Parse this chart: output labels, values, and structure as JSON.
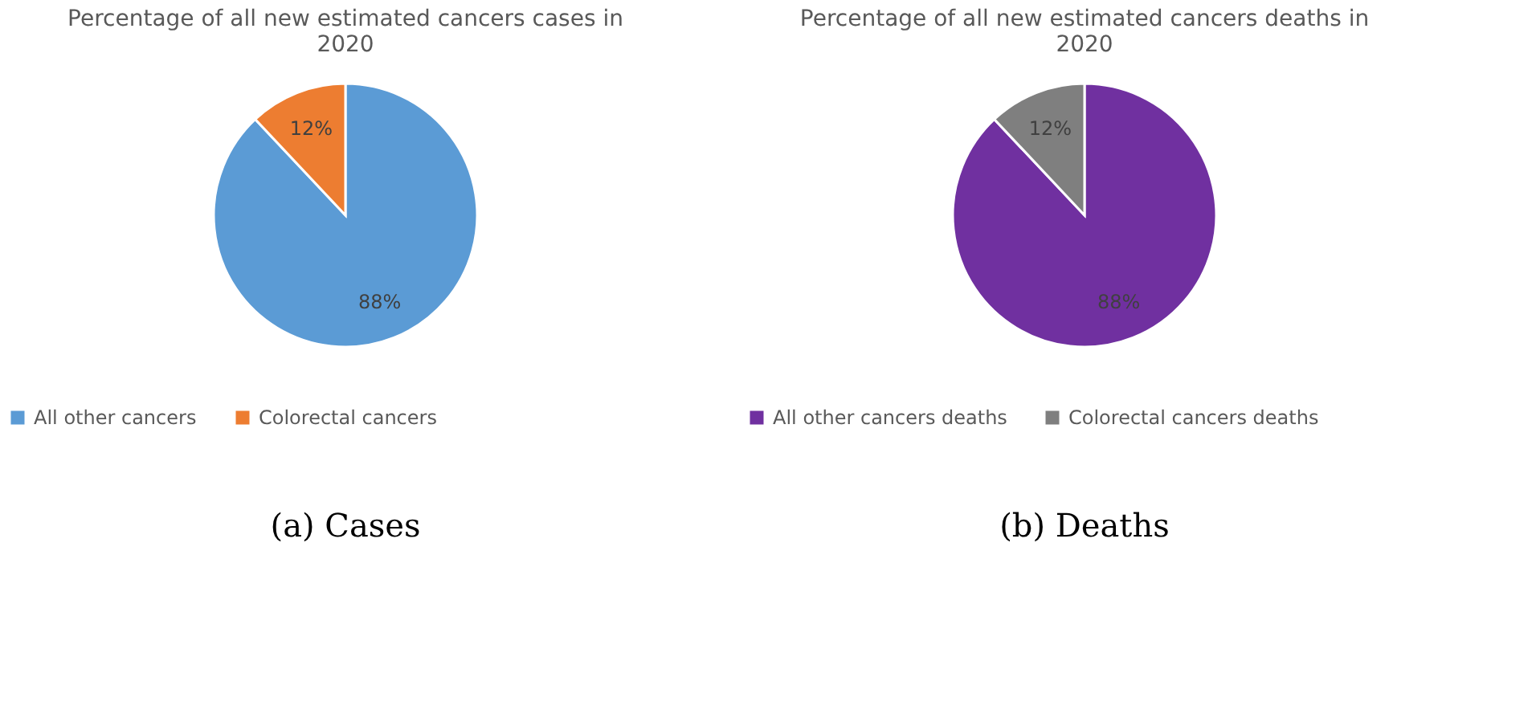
{
  "chart_data": [
    {
      "type": "pie",
      "title": "Percentage of all new estimated cancers cases in 2020",
      "categories": [
        "All other cancers",
        "Colorectal cancers"
      ],
      "values": [
        88,
        12
      ],
      "colors": [
        "#5b9bd5",
        "#ed7d31"
      ],
      "value_labels": [
        "88%",
        "12%"
      ],
      "legend": "bottom",
      "annotations": [
        "(a) Cases"
      ]
    },
    {
      "type": "pie",
      "title": "Percentage of all new estimated cancers deaths in 2020",
      "categories": [
        "All other cancers deaths",
        "Colorectal cancers deaths"
      ],
      "values": [
        88,
        12
      ],
      "colors": [
        "#7030a0",
        "#7f7f7f"
      ],
      "value_labels": [
        "88%",
        "12%"
      ],
      "legend": "bottom",
      "annotations": [
        "(b) Deaths"
      ]
    }
  ]
}
